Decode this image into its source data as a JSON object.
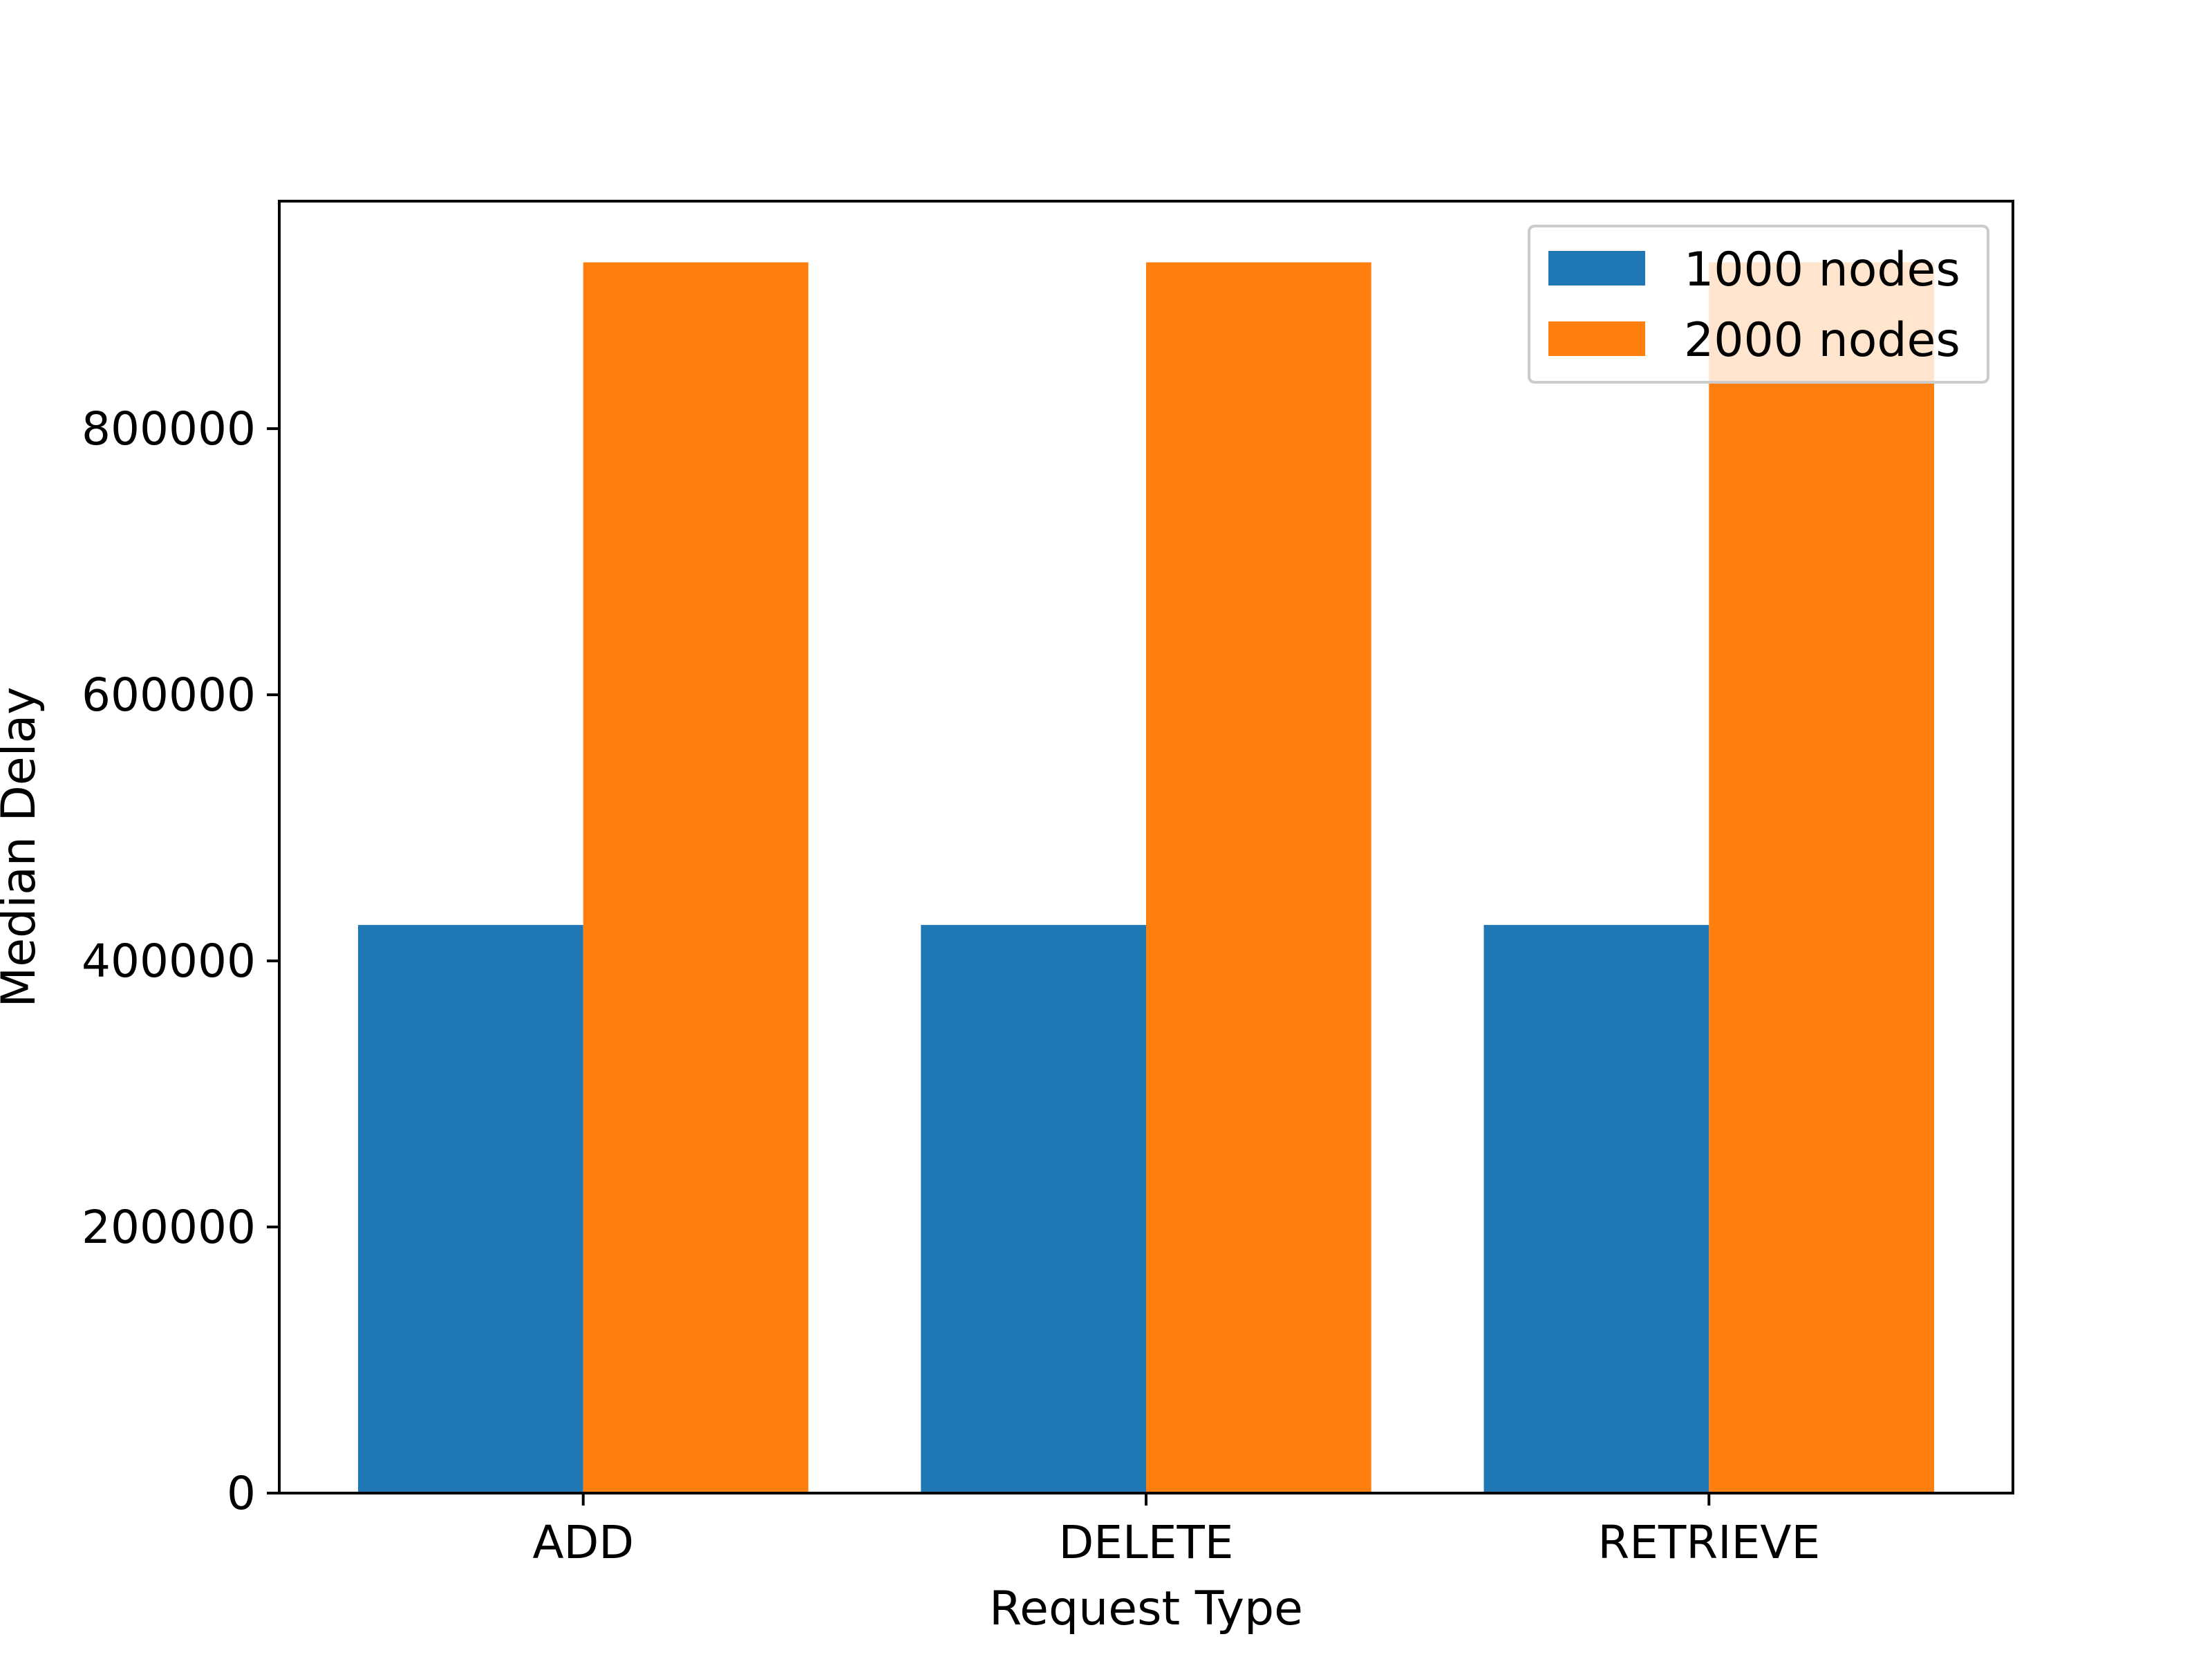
{
  "chart_data": {
    "type": "bar",
    "categories": [
      "ADD",
      "DELETE",
      "RETRIEVE"
    ],
    "series": [
      {
        "name": "1000 nodes",
        "values": [
          427000,
          427000,
          427000
        ],
        "color": "#1f77b4"
      },
      {
        "name": "2000 nodes",
        "values": [
          925000,
          925000,
          925000
        ],
        "color": "#ff7f0e"
      }
    ],
    "xlabel": "Request Type",
    "ylabel": "Median Delay",
    "ylim": [
      0,
      971000
    ],
    "yticks": [
      0,
      200000,
      400000,
      600000,
      800000
    ],
    "ytick_labels": [
      "0",
      "200000",
      "400000",
      "600000",
      "800000"
    ],
    "grid": false,
    "legend_position": "top-right"
  }
}
